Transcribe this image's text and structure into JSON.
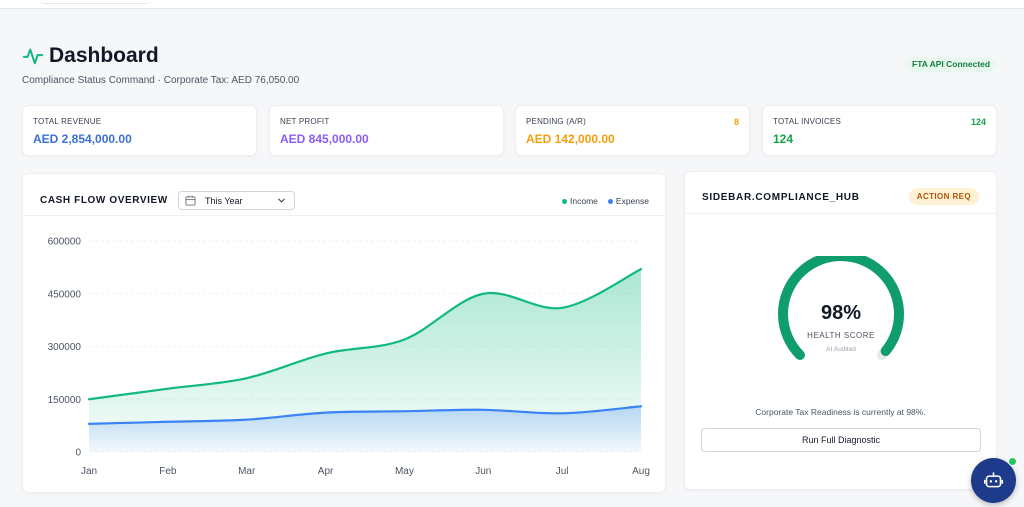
{
  "header": {
    "title": "Dashboard",
    "subtitle": "Compliance Status Command · Corporate Tax: AED 76,050.00",
    "api_badge": "FTA API Connected"
  },
  "kpis": [
    {
      "label": "TOTAL REVENUE",
      "value": "AED 2,854,000.00",
      "count": "",
      "color": "#3b6fd8"
    },
    {
      "label": "NET PROFIT",
      "value": "AED 845,000.00",
      "count": "",
      "color": "#8b5cf6"
    },
    {
      "label": "PENDING (A/R)",
      "value": "AED 142,000.00",
      "count": "8",
      "color": "#f59e0b"
    },
    {
      "label": "TOTAL INVOICES",
      "value": "124",
      "count": "124",
      "color": "#16a34a"
    }
  ],
  "cashflow": {
    "title": "CASH FLOW OVERVIEW",
    "range_selected": "This Year",
    "legend_income": "Income",
    "legend_expense": "Expense",
    "income_color": "#10b981",
    "expense_color": "#3b82f6"
  },
  "chart_data": {
    "type": "area",
    "categories": [
      "Jan",
      "Feb",
      "Mar",
      "Apr",
      "May",
      "Jun",
      "Jul",
      "Aug"
    ],
    "series": [
      {
        "name": "Income",
        "values": [
          150000,
          180000,
          210000,
          280000,
          320000,
          450000,
          410000,
          520000
        ]
      },
      {
        "name": "Expense",
        "values": [
          80000,
          86000,
          92000,
          112000,
          116000,
          120000,
          110000,
          130000
        ]
      }
    ],
    "yticks": [
      0,
      150000,
      300000,
      450000,
      600000
    ],
    "ylim": [
      0,
      600000
    ],
    "grid": true,
    "legend": "top-right",
    "title": "",
    "xlabel": "",
    "ylabel": ""
  },
  "hub": {
    "title": "SIDEBAR.COMPLIANCE_HUB",
    "badge": "ACTION REQ",
    "score_pct": "98%",
    "score_value": 0.98,
    "score_label": "HEALTH SCORE",
    "score_sub": "AI Audited",
    "readiness_text": "Corporate Tax Readiness is currently at 98%.",
    "diagnostic_button": "Run Full Diagnostic",
    "gauge_color": "#0f9d6b",
    "gauge_track": "#e5e7eb"
  },
  "assistant": {
    "icon": "robot-icon",
    "status_color": "#22c55e"
  }
}
